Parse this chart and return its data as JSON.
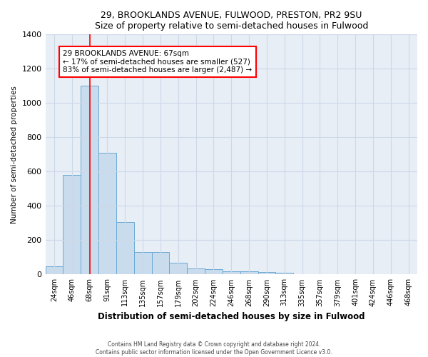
{
  "title1": "29, BROOKLANDS AVENUE, FULWOOD, PRESTON, PR2 9SU",
  "title2": "Size of property relative to semi-detached houses in Fulwood",
  "xlabel": "Distribution of semi-detached houses by size in Fulwood",
  "ylabel": "Number of semi-detached properties",
  "footnote1": "Contains HM Land Registry data © Crown copyright and database right 2024.",
  "footnote2": "Contains public sector information licensed under the Open Government Licence v3.0.",
  "bar_labels": [
    "24sqm",
    "46sqm",
    "68sqm",
    "91sqm",
    "113sqm",
    "135sqm",
    "157sqm",
    "179sqm",
    "202sqm",
    "224sqm",
    "246sqm",
    "268sqm",
    "290sqm",
    "313sqm",
    "335sqm",
    "357sqm",
    "379sqm",
    "401sqm",
    "424sqm",
    "446sqm",
    "468sqm"
  ],
  "bar_values": [
    48,
    580,
    1100,
    710,
    305,
    133,
    133,
    68,
    35,
    30,
    20,
    18,
    15,
    10,
    0,
    0,
    0,
    0,
    0,
    0,
    0
  ],
  "bar_color": "#c9dced",
  "bar_edge_color": "#6aaad4",
  "property_line_x": 2.0,
  "annotation_text_line1": "29 BROOKLANDS AVENUE: 67sqm",
  "annotation_text_line2": "← 17% of semi-detached houses are smaller (527)",
  "annotation_text_line3": "83% of semi-detached houses are larger (2,487) →",
  "ylim": [
    0,
    1400
  ],
  "yticks": [
    0,
    200,
    400,
    600,
    800,
    1000,
    1200,
    1400
  ],
  "grid_color": "#cdd8e8",
  "background_color": "#e8eef6"
}
